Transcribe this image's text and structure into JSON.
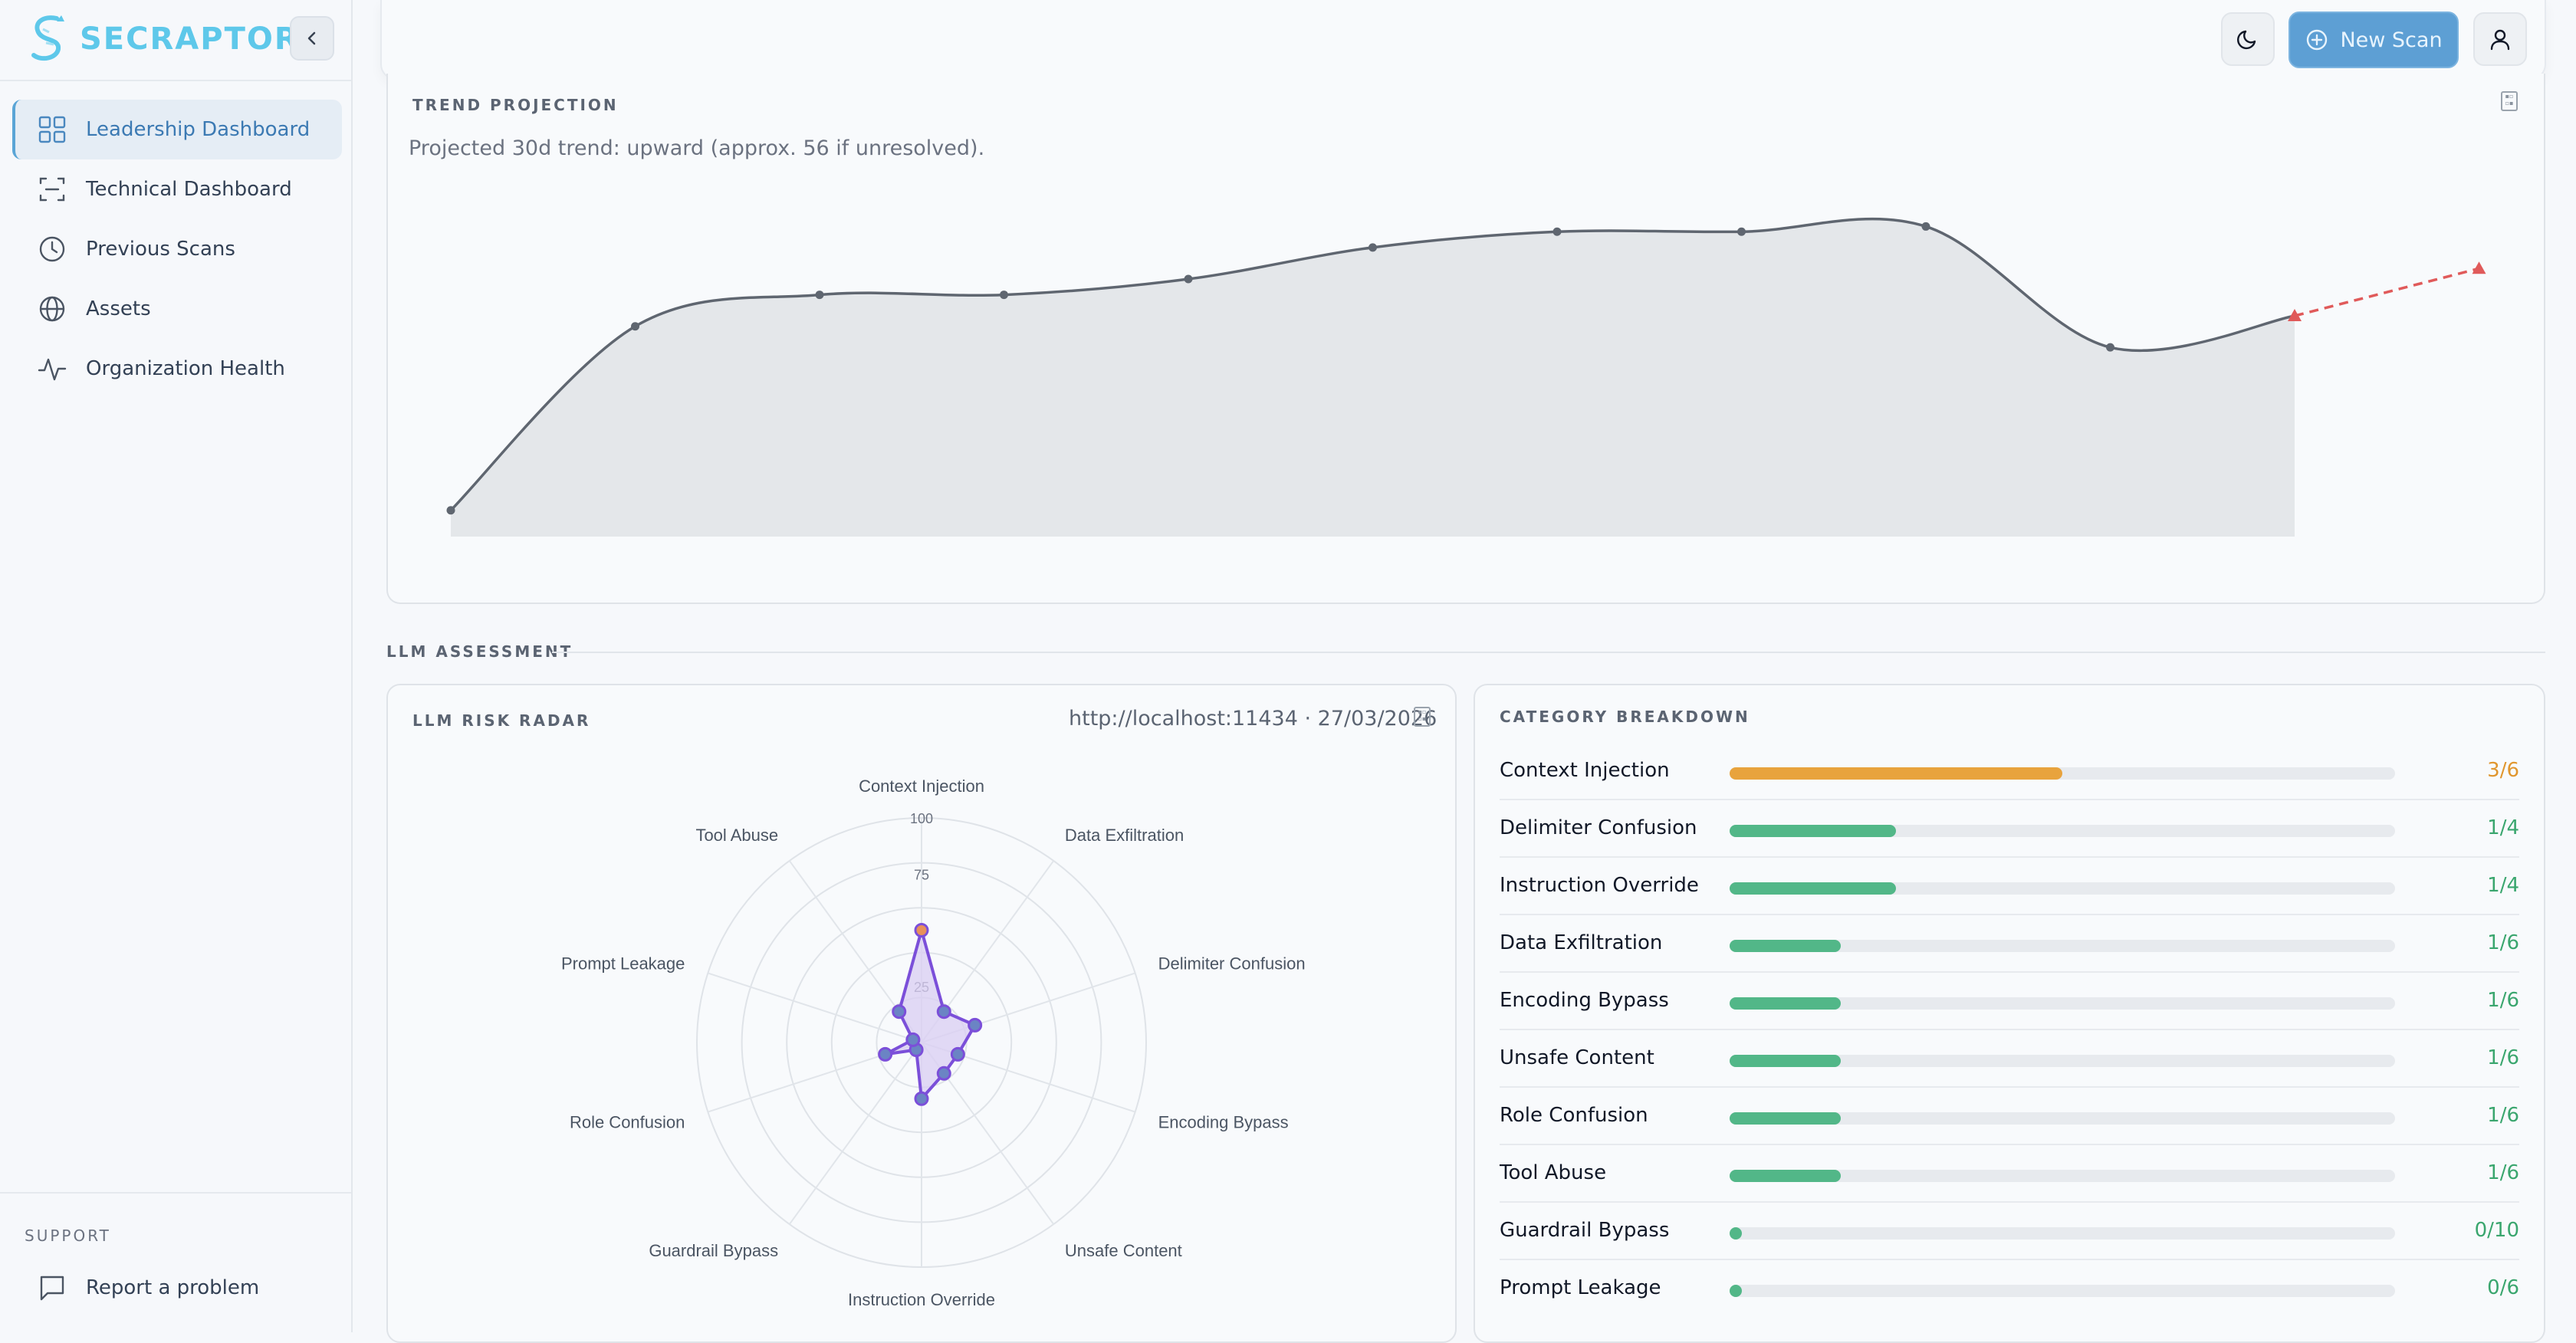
{
  "app": {
    "name": "SECRAPTOR"
  },
  "sidebar": {
    "items": [
      {
        "label": "Leadership Dashboard",
        "icon": "grid-icon",
        "active": true
      },
      {
        "label": "Technical Dashboard",
        "icon": "scan-icon",
        "active": false
      },
      {
        "label": "Previous Scans",
        "icon": "clock-icon",
        "active": false
      },
      {
        "label": "Assets",
        "icon": "globe-icon",
        "active": false
      },
      {
        "label": "Organization Health",
        "icon": "activity-icon",
        "active": false
      }
    ],
    "support_title": "SUPPORT",
    "support_item": "Report a problem"
  },
  "header": {
    "new_scan_label": "New Scan"
  },
  "trend": {
    "title": "TREND PROJECTION",
    "subtitle": "Projected 30d trend: upward (approx. 56 if unresolved).",
    "chart_data": {
      "type": "area",
      "values": [
        5,
        40,
        46,
        46,
        49,
        55,
        58,
        58,
        59,
        36,
        42
      ],
      "projection": [
        42,
        51
      ],
      "ylim": [
        0,
        70
      ],
      "colors": {
        "line": "#5f6670",
        "area": "#e4e7ea",
        "projection": "#e05a5a"
      }
    }
  },
  "llm": {
    "section_label": "LLM ASSESSMENT",
    "radar_title": "LLM RISK RADAR",
    "radar_meta": "http://localhost:11434 · 27/03/2026",
    "radar": {
      "type": "radar",
      "axes": [
        "Context Injection",
        "Data Exfiltration",
        "Delimiter Confusion",
        "Encoding Bypass",
        "Unsafe Content",
        "Instruction Override",
        "Guardrail Bypass",
        "Role Confusion",
        "Prompt Leakage",
        "Tool Abuse"
      ],
      "values": [
        50,
        17,
        25,
        17,
        17,
        25,
        0,
        17,
        0,
        17
      ],
      "rmax": 100,
      "ticks": [
        "25",
        "75",
        "100"
      ],
      "colors": {
        "line": "#7b4fd9",
        "fill": "#d9cdf3",
        "point": "#6b84c4",
        "highlight": "#e8905a"
      }
    },
    "breakdown_title": "CATEGORY BREAKDOWN",
    "breakdown": [
      {
        "name": "Context Injection",
        "value": "3/6",
        "ratio": 0.5,
        "color": "#e8a33d"
      },
      {
        "name": "Delimiter Confusion",
        "value": "1/4",
        "ratio": 0.25,
        "color": "#52b788"
      },
      {
        "name": "Instruction Override",
        "value": "1/4",
        "ratio": 0.25,
        "color": "#52b788"
      },
      {
        "name": "Data Exfiltration",
        "value": "1/6",
        "ratio": 0.1667,
        "color": "#52b788"
      },
      {
        "name": "Encoding Bypass",
        "value": "1/6",
        "ratio": 0.1667,
        "color": "#52b788"
      },
      {
        "name": "Unsafe Content",
        "value": "1/6",
        "ratio": 0.1667,
        "color": "#52b788"
      },
      {
        "name": "Role Confusion",
        "value": "1/6",
        "ratio": 0.1667,
        "color": "#52b788"
      },
      {
        "name": "Tool Abuse",
        "value": "1/6",
        "ratio": 0.1667,
        "color": "#52b788"
      },
      {
        "name": "Guardrail Bypass",
        "value": "0/10",
        "ratio": 0,
        "color": "#52b788"
      },
      {
        "name": "Prompt Leakage",
        "value": "0/6",
        "ratio": 0,
        "color": "#52b788"
      }
    ]
  }
}
